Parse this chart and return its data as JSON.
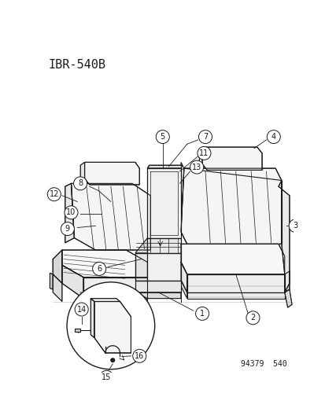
{
  "title": "IBR-540B",
  "footer": "94379  540",
  "bg_color": "#ffffff",
  "line_color": "#1a1a1a",
  "title_fontsize": 11,
  "callout_r": 0.028,
  "callout_fontsize": 7,
  "footer_fontsize": 7
}
